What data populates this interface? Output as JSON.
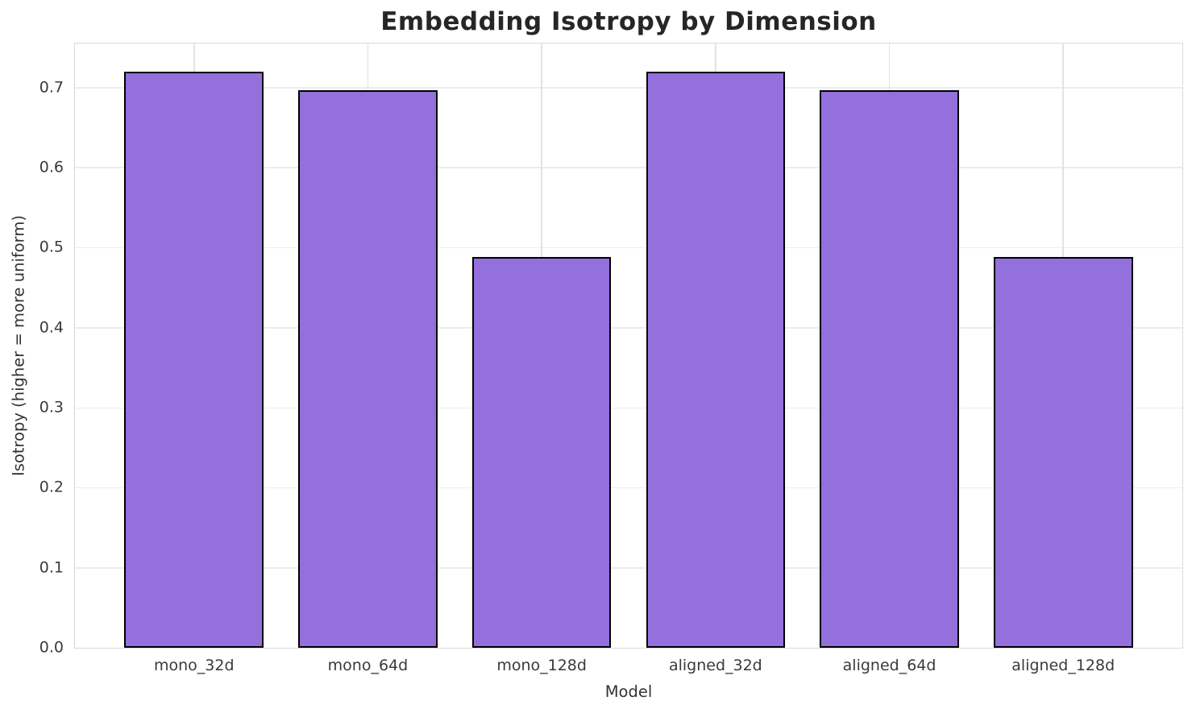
{
  "chart_data": {
    "type": "bar",
    "title": "Embedding Isotropy by Dimension",
    "xlabel": "Model",
    "ylabel": "Isotropy (higher = more uniform)",
    "categories": [
      "mono_32d",
      "mono_64d",
      "mono_128d",
      "aligned_32d",
      "aligned_64d",
      "aligned_128d"
    ],
    "values": [
      0.72,
      0.697,
      0.488,
      0.72,
      0.697,
      0.488
    ],
    "ytick_labels": [
      "0.0",
      "0.1",
      "0.2",
      "0.3",
      "0.4",
      "0.5",
      "0.6",
      "0.7"
    ],
    "ylim": [
      0,
      0.755
    ],
    "grid": true,
    "legend": null,
    "bar_color": "#9370DB",
    "bar_edge_color": "#000000",
    "gridline_color": "#ececec",
    "background_color": "#ffffff"
  }
}
